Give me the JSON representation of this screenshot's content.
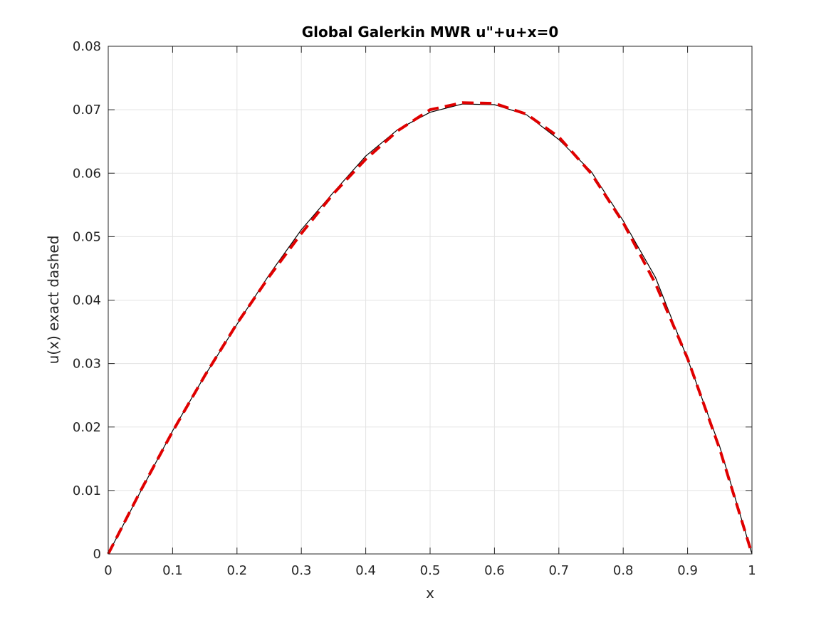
{
  "chart_data": {
    "type": "line",
    "title": "Global Galerkin MWR u\"+u+x=0",
    "xlabel": "x",
    "ylabel": "u(x) exact dashed",
    "xlim": [
      0,
      1
    ],
    "ylim": [
      0,
      0.08
    ],
    "xticks": [
      0,
      0.1,
      0.2,
      0.3,
      0.4,
      0.5,
      0.6,
      0.7,
      0.8,
      0.9,
      1
    ],
    "xtick_labels": [
      "0",
      "0.1",
      "0.2",
      "0.3",
      "0.4",
      "0.5",
      "0.6",
      "0.7",
      "0.8",
      "0.9",
      "1"
    ],
    "yticks": [
      0,
      0.01,
      0.02,
      0.03,
      0.04,
      0.05,
      0.06,
      0.07,
      0.08
    ],
    "ytick_labels": [
      "0",
      "0.01",
      "0.02",
      "0.03",
      "0.04",
      "0.05",
      "0.06",
      "0.07",
      "0.08"
    ],
    "grid": true,
    "x": [
      0,
      0.05,
      0.1,
      0.15,
      0.2,
      0.25,
      0.3,
      0.35,
      0.4,
      0.45,
      0.5,
      0.55,
      0.6,
      0.65,
      0.7,
      0.75,
      0.8,
      0.85,
      0.9,
      0.95,
      1
    ],
    "series": [
      {
        "color": "#000000",
        "style": "solid",
        "values": [
          0,
          0.0098,
          0.0194,
          0.0281,
          0.0362,
          0.044,
          0.0511,
          0.057,
          0.0627,
          0.0669,
          0.0696,
          0.0709,
          0.0708,
          0.0692,
          0.0653,
          0.0603,
          0.0525,
          0.0436,
          0.0307,
          0.0169,
          0
        ]
      },
      {
        "color": "#e00000",
        "style": "dashed",
        "values": [
          0,
          0.0099,
          0.0193,
          0.0281,
          0.0363,
          0.0437,
          0.0505,
          0.0568,
          0.0622,
          0.0667,
          0.07,
          0.0711,
          0.071,
          0.0693,
          0.0657,
          0.06,
          0.0522,
          0.0426,
          0.0308,
          0.0165,
          0
        ]
      }
    ]
  }
}
